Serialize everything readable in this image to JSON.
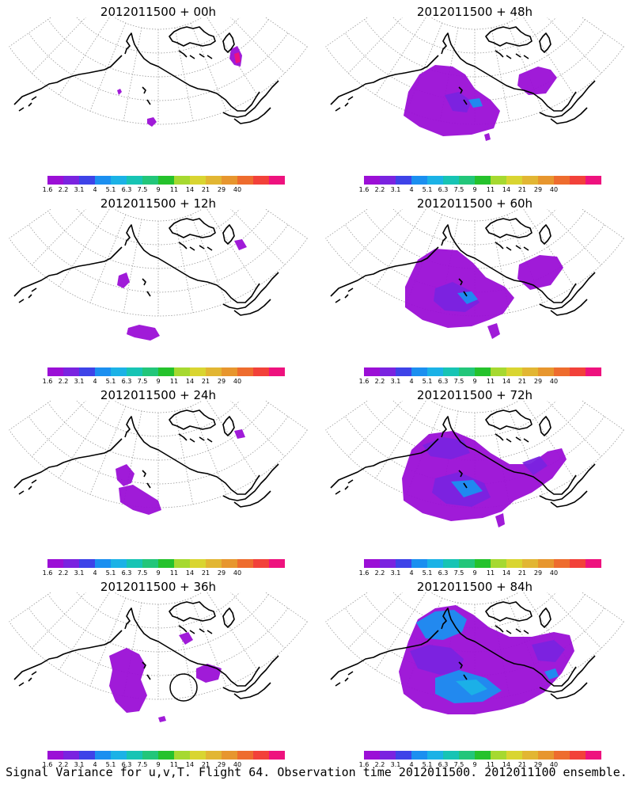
{
  "caption": "Signal Variance for u,v,T. Flight 64. Observation time 2012011500. 2012011100 ensemble.",
  "colorbar": {
    "colors": [
      "#9b0fd6",
      "#7a23e0",
      "#3e43e8",
      "#1b8ff0",
      "#1bb2e6",
      "#17c4b4",
      "#22c67a",
      "#25c22c",
      "#a6d930",
      "#d9d531",
      "#e2b633",
      "#e7962e",
      "#ee6c2e",
      "#f2413a",
      "#ee127e"
    ],
    "labels": [
      "1.6",
      "2.2",
      "3.1",
      "4",
      "5.1",
      "6.3",
      "7.5",
      "9",
      "11",
      "14",
      "21",
      "29",
      "40"
    ]
  },
  "panels": [
    {
      "title": "2012011500 + 00h",
      "intensity": 0,
      "circle": false
    },
    {
      "title": "2012011500 + 48h",
      "intensity": 4,
      "circle": false
    },
    {
      "title": "2012011500 + 12h",
      "intensity": 1,
      "circle": false
    },
    {
      "title": "2012011500 + 60h",
      "intensity": 5,
      "circle": false
    },
    {
      "title": "2012011500 + 24h",
      "intensity": 2,
      "circle": false
    },
    {
      "title": "2012011500 + 72h",
      "intensity": 6,
      "circle": false
    },
    {
      "title": "2012011500 + 36h",
      "intensity": 3,
      "circle": true
    },
    {
      "title": "2012011500 + 84h",
      "intensity": 7,
      "circle": false
    }
  ]
}
